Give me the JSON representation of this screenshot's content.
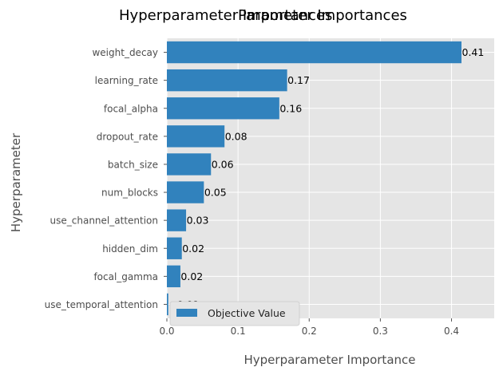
{
  "chart_data": {
    "type": "bar",
    "orientation": "horizontal",
    "titles": [
      "Hyperparameter Importances",
      "Parameter Importances"
    ],
    "xlabel": "Hyperparameter Importance",
    "ylabel": "Hyperparameter",
    "xlim": [
      0,
      0.46
    ],
    "xticks": [
      "0.0",
      "0.1",
      "0.2",
      "0.3",
      "0.4"
    ],
    "grid": true,
    "legend": {
      "placement": "lower-left",
      "entries": [
        "Objective Value"
      ]
    },
    "bar_color": "#3182bd",
    "background_color": "#e5e5e5",
    "categories": [
      "weight_decay",
      "learning_rate",
      "focal_alpha",
      "dropout_rate",
      "batch_size",
      "num_blocks",
      "use_channel_attention",
      "hidden_dim",
      "focal_gamma",
      "use_temporal_attention"
    ],
    "values": [
      0.414,
      0.169,
      0.158,
      0.081,
      0.062,
      0.052,
      0.027,
      0.021,
      0.019,
      0.002
    ],
    "value_labels": [
      "0.41",
      "0.17",
      "0.16",
      "0.08",
      "0.06",
      "0.05",
      "0.03",
      "0.02",
      "0.02",
      "<0.01"
    ]
  }
}
